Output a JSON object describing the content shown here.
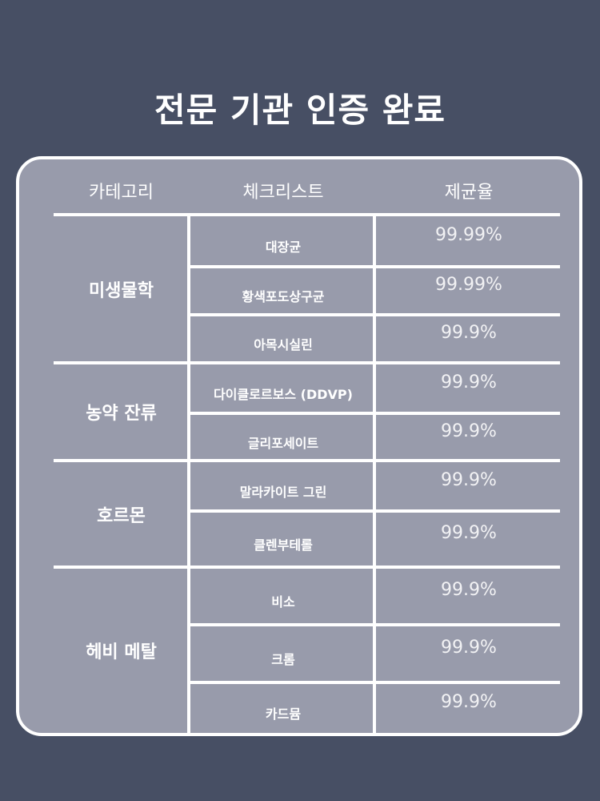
{
  "title": "전문 기관 인증 완료",
  "headers": [
    "카테고리",
    "체크리스트",
    "제균율"
  ],
  "groups": [
    {
      "category": "미생물학",
      "items": [
        {
          "name": "대장균",
          "rate": "99.99%"
        },
        {
          "name": "황색포도상구균",
          "rate": "99.99%"
        },
        {
          "name": "아목시실린",
          "rate": "99.9%"
        }
      ]
    },
    {
      "category": "농약 잔류",
      "items": [
        {
          "name": "다이클로르보스 (DDVP)",
          "rate": "99.9%"
        },
        {
          "name": "글리포세이트",
          "rate": "99.9%"
        }
      ]
    },
    {
      "category": "호르몬",
      "items": [
        {
          "name": "말라카이트 그린",
          "rate": "99.9%"
        },
        {
          "name": "클렌부테롤",
          "rate": "99.9%"
        }
      ]
    },
    {
      "category": "헤비 메탈",
      "items": [
        {
          "name": "비소",
          "rate": "99.9%"
        },
        {
          "name": "크롬",
          "rate": "99.9%"
        },
        {
          "name": "카드뮴",
          "rate": "99.9%"
        }
      ]
    }
  ]
}
